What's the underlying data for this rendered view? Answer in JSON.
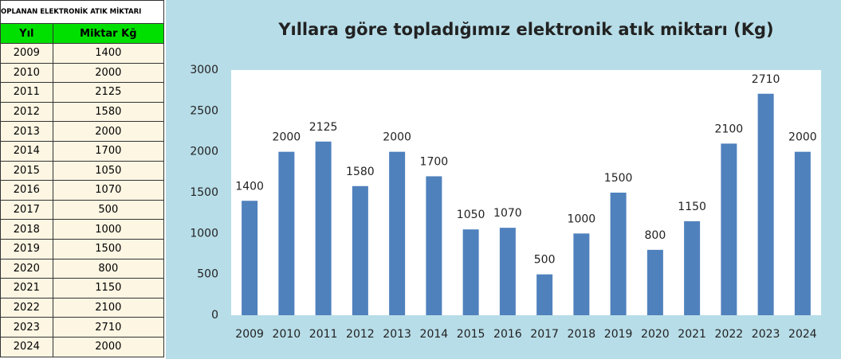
{
  "table": {
    "title": "OPLANAN ELEKTRONİK ATIK MİKTARI",
    "headers": [
      "Yıl",
      "Miktar Kğ"
    ],
    "rows": [
      [
        "2009",
        "1400"
      ],
      [
        "2010",
        "2000"
      ],
      [
        "2011",
        "2125"
      ],
      [
        "2012",
        "1580"
      ],
      [
        "2013",
        "2000"
      ],
      [
        "2014",
        "1700"
      ],
      [
        "2015",
        "1050"
      ],
      [
        "2016",
        "1070"
      ],
      [
        "2017",
        "500"
      ],
      [
        "2018",
        "1000"
      ],
      [
        "2019",
        "1500"
      ],
      [
        "2020",
        "800"
      ],
      [
        "2021",
        "1150"
      ],
      [
        "2022",
        "2100"
      ],
      [
        "2023",
        "2710"
      ],
      [
        "2024",
        "2000"
      ]
    ]
  },
  "chart_data": {
    "type": "bar",
    "title": "Yıllara göre topladığımız elektronik atık miktarı (Kg)",
    "categories": [
      "2009",
      "2010",
      "2011",
      "2012",
      "2013",
      "2014",
      "2015",
      "2016",
      "2017",
      "2018",
      "2019",
      "2020",
      "2021",
      "2022",
      "2023",
      "2024"
    ],
    "values": [
      1400,
      2000,
      2125,
      1580,
      2000,
      1700,
      1050,
      1070,
      500,
      1000,
      1500,
      800,
      1150,
      2100,
      2710,
      2000
    ],
    "color": "#4f81bd",
    "ylim": [
      0,
      3000
    ],
    "yticks": [
      0,
      500,
      1000,
      1500,
      2000,
      2500,
      3000
    ],
    "grid": false
  }
}
